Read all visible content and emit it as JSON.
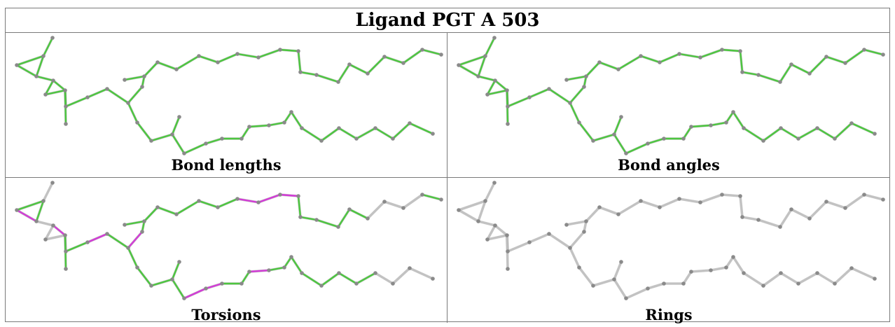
{
  "title": "Ligand PGT A 503",
  "panels": [
    {
      "id": "bond-lengths",
      "caption": "Bond lengths"
    },
    {
      "id": "bond-angles",
      "caption": "Bond angles"
    },
    {
      "id": "torsions",
      "caption": "Torsions"
    },
    {
      "id": "rings",
      "caption": "Rings"
    }
  ],
  "colors": {
    "green": "#4cc63f",
    "magenta": "#d23ad6",
    "grey": "#c2c2c2",
    "atom": "#8a8a8a"
  }
}
